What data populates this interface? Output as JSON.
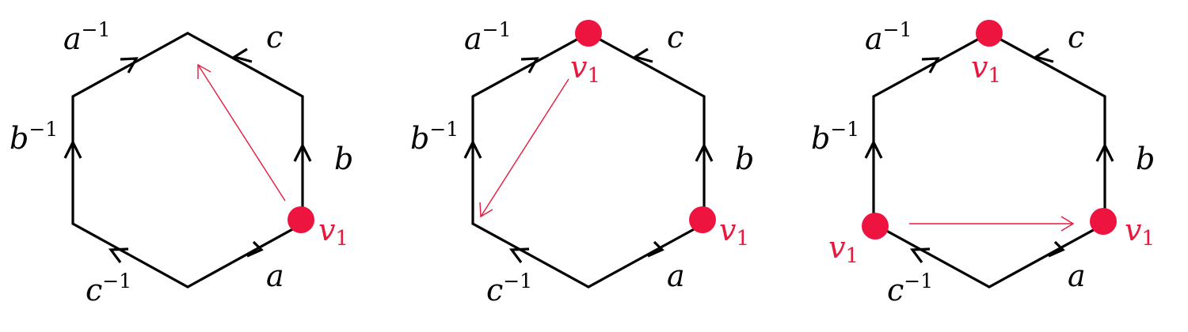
{
  "panels": [
    {
      "edge_labels": {
        "a": "a",
        "b": "b",
        "c": "c",
        "a_inv": "a",
        "b_inv": "b",
        "c_inv": "c",
        "exp": "−1"
      },
      "vertex_label": "v",
      "vertex_sub": "1",
      "vertex_colour": "#ee1440"
    },
    {
      "edge_labels": {
        "a": "a",
        "b": "b",
        "c": "c",
        "a_inv": "a",
        "b_inv": "b",
        "c_inv": "c",
        "exp": "−1"
      },
      "vertex_label": "v",
      "vertex_sub": "1",
      "vertex_colour": "#ee1440"
    },
    {
      "edge_labels": {
        "a": "a",
        "b": "b",
        "c": "c",
        "a_inv": "a",
        "b_inv": "b",
        "c_inv": "c",
        "exp": "−1"
      },
      "vertex_label": "v",
      "vertex_sub": "1",
      "vertex_colour": "#ee1440"
    }
  ]
}
